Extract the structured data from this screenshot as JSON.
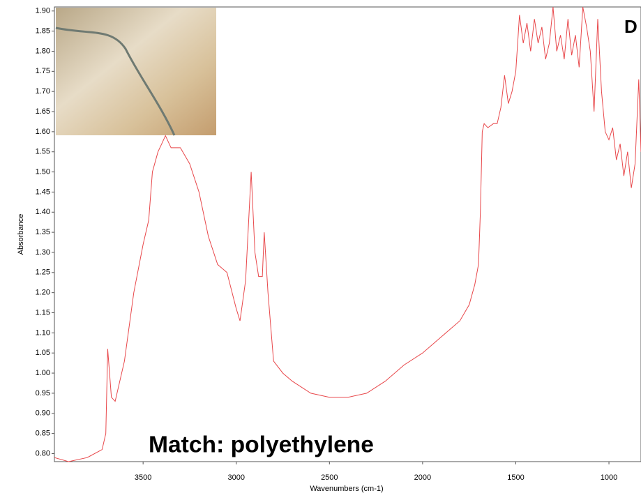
{
  "chart_data": {
    "type": "line",
    "panel_label": "D",
    "annotation": "Match: polyethylene",
    "x_label": "Wavenumbers (cm-1)",
    "y_label": "Absorbance",
    "xlim": [
      3976,
      828
    ],
    "ylim": [
      0.78,
      1.91
    ],
    "xticks": [
      3500,
      3000,
      2500,
      2000,
      1500,
      1000
    ],
    "yticks": [
      {
        "value": 0.8,
        "label": "0.80"
      },
      {
        "value": 0.85,
        "label": "0.85"
      },
      {
        "value": 0.9,
        "label": "0.90"
      },
      {
        "value": 0.95,
        "label": "0.95"
      },
      {
        "value": 1.0,
        "label": "1.00"
      },
      {
        "value": 1.05,
        "label": "1.05"
      },
      {
        "value": 1.1,
        "label": "1.10"
      },
      {
        "value": 1.15,
        "label": "1.15"
      },
      {
        "value": 1.2,
        "label": "1.20"
      },
      {
        "value": 1.25,
        "label": "1.25"
      },
      {
        "value": 1.3,
        "label": "1.30"
      },
      {
        "value": 1.35,
        "label": "1.35"
      },
      {
        "value": 1.4,
        "label": "1.40"
      },
      {
        "value": 1.45,
        "label": "1.45"
      },
      {
        "value": 1.5,
        "label": "1.50"
      },
      {
        "value": 1.55,
        "label": "1.55"
      },
      {
        "value": 1.6,
        "label": "1.60"
      },
      {
        "value": 1.65,
        "label": "1.65"
      },
      {
        "value": 1.7,
        "label": "1.70"
      },
      {
        "value": 1.75,
        "label": "1.75"
      },
      {
        "value": 1.8,
        "label": "1.80"
      },
      {
        "value": 1.85,
        "label": "1.85"
      },
      {
        "value": 1.9,
        "label": "1.90"
      }
    ],
    "x": [
      3976,
      3900,
      3800,
      3720,
      3700,
      3690,
      3670,
      3650,
      3600,
      3550,
      3500,
      3470,
      3450,
      3420,
      3400,
      3380,
      3350,
      3300,
      3250,
      3200,
      3150,
      3100,
      3050,
      3000,
      2980,
      2950,
      2920,
      2900,
      2880,
      2860,
      2850,
      2830,
      2800,
      2750,
      2700,
      2600,
      2500,
      2400,
      2300,
      2200,
      2100,
      2000,
      1900,
      1800,
      1750,
      1720,
      1700,
      1690,
      1680,
      1670,
      1650,
      1620,
      1600,
      1580,
      1560,
      1540,
      1520,
      1500,
      1480,
      1460,
      1440,
      1420,
      1400,
      1380,
      1360,
      1340,
      1320,
      1300,
      1280,
      1260,
      1240,
      1220,
      1200,
      1180,
      1160,
      1140,
      1120,
      1100,
      1080,
      1060,
      1040,
      1020,
      1000,
      980,
      960,
      940,
      920,
      900,
      880,
      860,
      840,
      828
    ],
    "series": [
      {
        "color": "#e8474a",
        "values": [
          0.79,
          0.78,
          0.79,
          0.81,
          0.85,
          1.06,
          0.94,
          0.93,
          1.03,
          1.2,
          1.32,
          1.38,
          1.5,
          1.55,
          1.57,
          1.59,
          1.56,
          1.56,
          1.52,
          1.45,
          1.34,
          1.27,
          1.25,
          1.16,
          1.13,
          1.23,
          1.5,
          1.3,
          1.24,
          1.24,
          1.35,
          1.2,
          1.03,
          1.0,
          0.98,
          0.95,
          0.94,
          0.94,
          0.95,
          0.98,
          1.02,
          1.05,
          1.09,
          1.13,
          1.17,
          1.22,
          1.27,
          1.4,
          1.6,
          1.62,
          1.61,
          1.62,
          1.62,
          1.66,
          1.74,
          1.67,
          1.7,
          1.75,
          1.89,
          1.82,
          1.87,
          1.8,
          1.88,
          1.82,
          1.86,
          1.78,
          1.82,
          1.91,
          1.8,
          1.84,
          1.78,
          1.88,
          1.79,
          1.84,
          1.76,
          1.91,
          1.86,
          1.8,
          1.65,
          1.88,
          1.7,
          1.6,
          1.58,
          1.61,
          1.53,
          1.57,
          1.49,
          1.55,
          1.46,
          1.52,
          1.73,
          1.55
        ]
      }
    ]
  }
}
